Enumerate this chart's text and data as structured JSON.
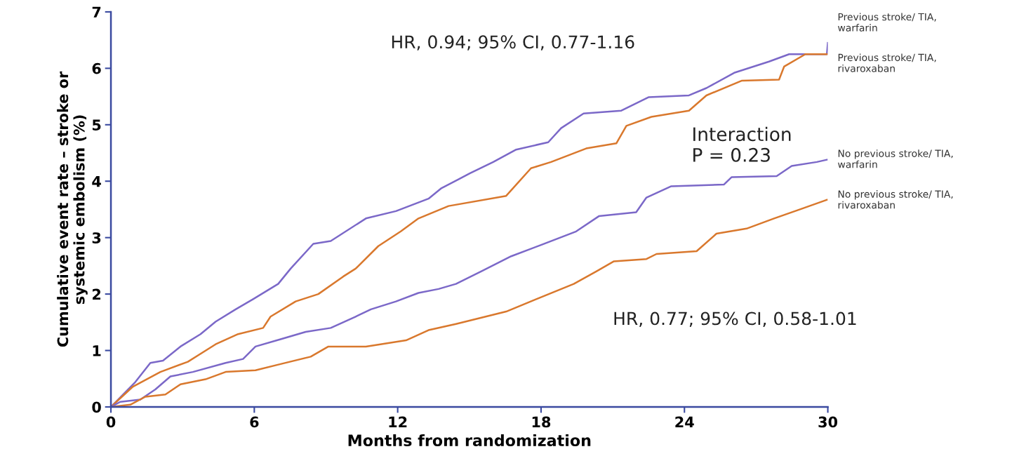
{
  "chart_data": {
    "type": "line",
    "xlabel": "Months from randomization",
    "ylabel": "Cumulative event rate – stroke or\nsystemic embolism (%)",
    "xlim": [
      0,
      30
    ],
    "xticks": [
      0,
      6,
      12,
      18,
      24,
      30
    ],
    "ylim": [
      0,
      7
    ],
    "yticks": [
      0,
      1,
      2,
      3,
      4,
      5,
      6,
      7
    ],
    "grid": false,
    "legend": false,
    "marker": "none",
    "line_style": "solid",
    "annotations": [
      "HR, 0.94; 95% CI, 0.77-1.16",
      "Interaction\nP = 0.23",
      "HR, 0.77; 95% CI, 0.58-1.01"
    ],
    "series": [
      {
        "name": "Previous stroke/ TIA,\nwarfarin",
        "color": "#7b68c8",
        "x": [
          0,
          1.02,
          1.65,
          2.18,
          2.91,
          3.75,
          4.38,
          5.22,
          5.95,
          7.0,
          7.52,
          8.47,
          9.2,
          10.67,
          11.93,
          13.29,
          13.81,
          15.03,
          16.0,
          16.96,
          18.3,
          18.84,
          19.78,
          21.36,
          22.51,
          24.19,
          24.92,
          26.08,
          27.54,
          28.38,
          29.96,
          30
        ],
        "values": [
          0,
          0.44,
          0.78,
          0.82,
          1.07,
          1.29,
          1.51,
          1.73,
          1.91,
          2.18,
          2.45,
          2.89,
          2.94,
          3.34,
          3.47,
          3.69,
          3.87,
          4.14,
          4.34,
          4.56,
          4.69,
          4.94,
          5.2,
          5.25,
          5.49,
          5.52,
          5.65,
          5.92,
          6.12,
          6.25,
          6.25,
          6.45
        ]
      },
      {
        "name": "Previous stroke/ TIA,\nrivaroxaban",
        "color": "#d9782d",
        "x": [
          0,
          0.92,
          2.07,
          3.22,
          4.38,
          5.32,
          6.37,
          6.68,
          7.73,
          8.68,
          9.72,
          10.24,
          11.19,
          12.13,
          12.87,
          14.13,
          16.54,
          17.58,
          18.42,
          19.89,
          21.15,
          21.57,
          22.62,
          24.19,
          24.92,
          26.39,
          27.96,
          28.17,
          29.06,
          29.96
        ],
        "values": [
          0,
          0.36,
          0.62,
          0.8,
          1.11,
          1.29,
          1.4,
          1.6,
          1.87,
          2.0,
          2.31,
          2.45,
          2.85,
          3.11,
          3.34,
          3.56,
          3.74,
          4.23,
          4.34,
          4.58,
          4.67,
          4.98,
          5.14,
          5.25,
          5.52,
          5.78,
          5.8,
          6.03,
          6.25,
          6.25
        ]
      },
      {
        "name": "No previous stroke/ TIA,\nwarfarin",
        "color": "#7b68c8",
        "x": [
          0,
          0.39,
          1.23,
          1.86,
          2.49,
          3.43,
          4.8,
          5.53,
          6.05,
          7.1,
          8.15,
          9.2,
          10.24,
          10.88,
          11.93,
          12.87,
          13.71,
          14.44,
          15.49,
          16.75,
          18.0,
          19.47,
          20.42,
          21.98,
          22.41,
          23.45,
          25.65,
          25.97,
          27.86,
          28.49,
          29.54,
          29.96
        ],
        "values": [
          0,
          0.09,
          0.13,
          0.31,
          0.54,
          0.62,
          0.78,
          0.85,
          1.07,
          1.2,
          1.33,
          1.4,
          1.6,
          1.73,
          1.87,
          2.02,
          2.09,
          2.18,
          2.4,
          2.67,
          2.87,
          3.11,
          3.38,
          3.45,
          3.71,
          3.91,
          3.94,
          4.07,
          4.09,
          4.27,
          4.34,
          4.38
        ]
      },
      {
        "name": "No previous stroke/ TIA,\nrivaroxaban",
        "color": "#d9782d",
        "x": [
          0,
          0.81,
          1.44,
          2.28,
          2.91,
          3.96,
          4.8,
          6.05,
          7.1,
          8.36,
          9.1,
          10.67,
          12.35,
          13.29,
          14.44,
          16.54,
          17.8,
          19.37,
          20.31,
          21.05,
          22.41,
          22.83,
          24.51,
          25.34,
          26.6,
          27.75,
          28.9,
          29.96
        ],
        "values": [
          0,
          0.04,
          0.18,
          0.22,
          0.4,
          0.49,
          0.62,
          0.65,
          0.76,
          0.89,
          1.07,
          1.07,
          1.18,
          1.36,
          1.47,
          1.69,
          1.91,
          2.18,
          2.4,
          2.58,
          2.62,
          2.71,
          2.76,
          3.07,
          3.16,
          3.34,
          3.51,
          3.67
        ]
      }
    ]
  }
}
